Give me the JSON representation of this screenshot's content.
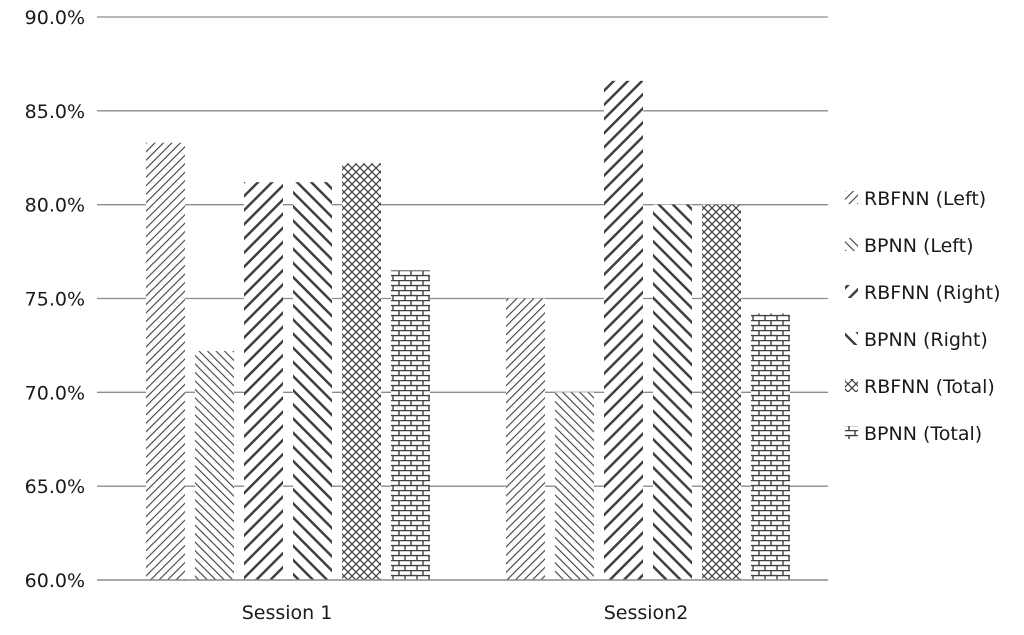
{
  "chart_data": {
    "type": "bar",
    "categories": [
      "Session 1",
      "Session2"
    ],
    "series": [
      {
        "name": "RBFNN (Left)",
        "values": [
          83.3,
          75.0
        ],
        "pattern": "diag-dense-down"
      },
      {
        "name": "BPNN (Left)",
        "values": [
          72.2,
          70.0
        ],
        "pattern": "diag-dense-up"
      },
      {
        "name": "RBFNN (Right)",
        "values": [
          81.2,
          86.6
        ],
        "pattern": "diag-wide-down"
      },
      {
        "name": "BPNN (Right)",
        "values": [
          81.2,
          80.0
        ],
        "pattern": "diag-wide-up"
      },
      {
        "name": "RBFNN (Total)",
        "values": [
          82.2,
          80.0
        ],
        "pattern": "crosshatch"
      },
      {
        "name": "BPNN (Total)",
        "values": [
          76.5,
          74.2
        ],
        "pattern": "brick"
      }
    ],
    "yticks": [
      "60.0%",
      "65.0%",
      "70.0%",
      "75.0%",
      "80.0%",
      "85.0%",
      "90.0%"
    ],
    "ylim": [
      60,
      90
    ],
    "grid": true,
    "legend": "right",
    "title": "",
    "xlabel": "",
    "ylabel": "",
    "colors": {
      "ink": "#404040",
      "grid": "#8c8c8c",
      "text": "#1a1a1a"
    }
  }
}
